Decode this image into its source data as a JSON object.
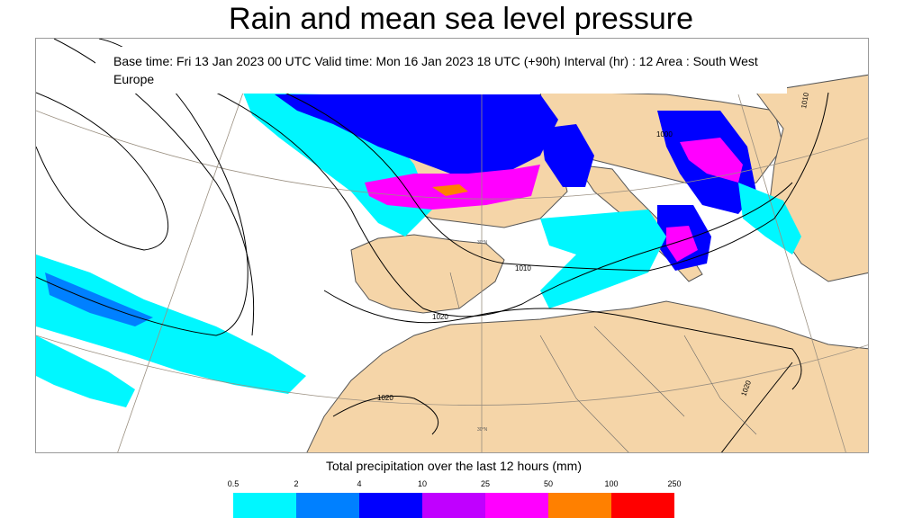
{
  "title": "Rain and mean sea level pressure",
  "info": {
    "line1": "Base time: Fri 13 Jan 2023 00 UTC Valid time: Mon 16 Jan 2023 18 UTC (+90h) Interval (hr) : 12 Area : South West",
    "line2": "Europe"
  },
  "isobar_labels": [
    "1000",
    "1010",
    "1010",
    "1020",
    "1020",
    "1020"
  ],
  "graticule_labels": [
    "30°N",
    "30°N"
  ],
  "legend": {
    "title": "Total precipitation over the last 12 hours (mm)",
    "thresholds": [
      "0.5",
      "2",
      "4",
      "10",
      "25",
      "50",
      "100",
      "250"
    ],
    "colors": [
      "#00f7ff",
      "#0080ff",
      "#0000ff",
      "#c000ff",
      "#ff00ff",
      "#ff8000",
      "#ff0000"
    ]
  },
  "colors": {
    "land": "#f5d5a8",
    "sea": "#ffffff"
  }
}
